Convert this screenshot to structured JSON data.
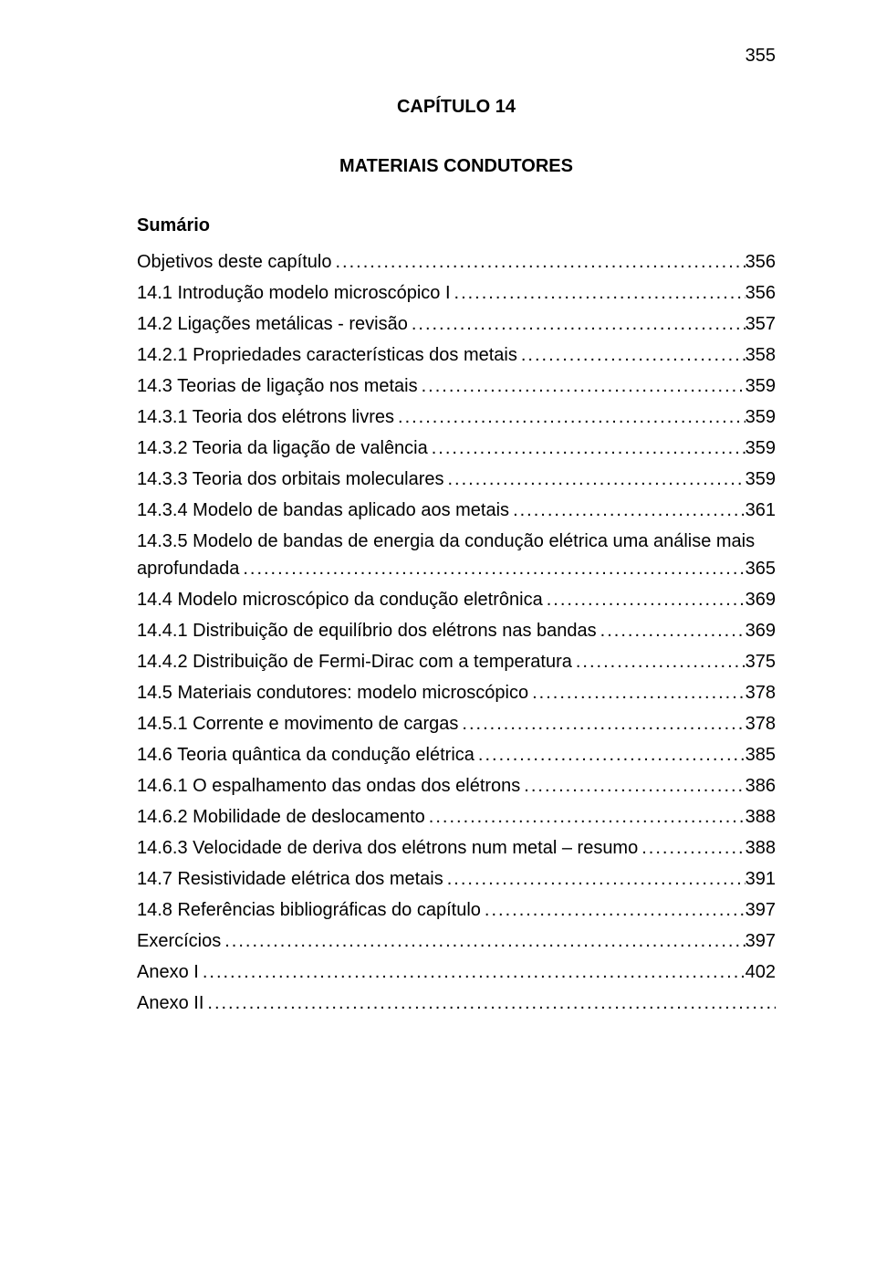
{
  "page_number": "355",
  "chapter_line1": "CAPÍTULO 14",
  "chapter_line2": "MATERIAIS CONDUTORES",
  "sumario": "Sumário",
  "toc": [
    {
      "label": "Objetivos deste capítulo",
      "page": "356"
    },
    {
      "label": "14.1 Introdução modelo microscópico I",
      "page": "356"
    },
    {
      "label": "14.2 Ligações metálicas - revisão",
      "page": "357"
    },
    {
      "label": "14.2.1 Propriedades características dos metais",
      "page": "358"
    },
    {
      "label": "14.3 Teorias de ligação nos metais",
      "page": "359"
    },
    {
      "label": "14.3.1 Teoria dos elétrons livres",
      "page": "359"
    },
    {
      "label": "14.3.2 Teoria da ligação de valência",
      "page": "359"
    },
    {
      "label": "14.3.3 Teoria dos orbitais moleculares",
      "page": "359"
    },
    {
      "label": "14.3.4 Modelo de bandas aplicado aos metais",
      "page": "361"
    },
    {
      "label": "14.3.5 Modelo de bandas de energia da condução elétrica uma análise mais",
      "label2": "aprofundada",
      "page": "365"
    },
    {
      "label": "14.4 Modelo microscópico da condução eletrônica",
      "page": "369"
    },
    {
      "label": "14.4.1 Distribuição de equilíbrio dos elétrons nas bandas",
      "page": "369"
    },
    {
      "label": "14.4.2 Distribuição de Fermi-Dirac com a temperatura",
      "page": "375"
    },
    {
      "label": "14.5 Materiais condutores: modelo microscópico",
      "page": "378"
    },
    {
      "label": "14.5.1 Corrente e movimento de cargas",
      "page": "378"
    },
    {
      "label": "14.6 Teoria quântica da condução elétrica",
      "page": "385"
    },
    {
      "label": "14.6.1 O espalhamento das ondas dos elétrons",
      "page": "386"
    },
    {
      "label": "14.6.2 Mobilidade de deslocamento",
      "page": "388"
    },
    {
      "label": "14.6.3 Velocidade de deriva dos elétrons num metal – resumo",
      "page": "388"
    },
    {
      "label": "14.7 Resistividade elétrica dos metais",
      "page": "391"
    },
    {
      "label": "14.8 Referências bibliográficas do capítulo",
      "page": "397"
    },
    {
      "label": "Exercícios",
      "page": "397"
    },
    {
      "label": "Anexo I",
      "page": "402"
    },
    {
      "label": "Anexo II",
      "page": ""
    }
  ]
}
